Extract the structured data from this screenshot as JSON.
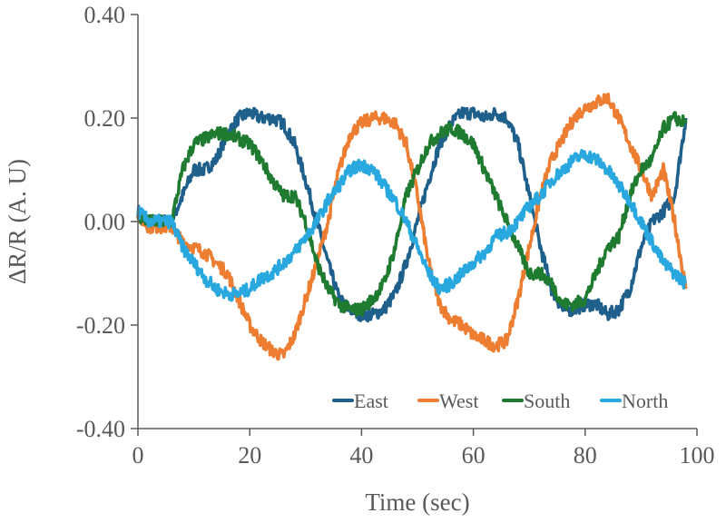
{
  "chart_data": {
    "type": "line",
    "title": "",
    "xlabel": "Time (sec)",
    "ylabel": "ΔR/R (A. U)",
    "xlim": [
      0,
      100
    ],
    "ylim": [
      -0.4,
      0.4
    ],
    "xticks": [
      "0",
      "20",
      "40",
      "60",
      "80",
      "100"
    ],
    "yticks": [
      "0.40",
      "0.20",
      "0.00",
      "-0.20",
      "-0.40"
    ],
    "xtick_values": [
      0,
      20,
      40,
      60,
      80,
      100
    ],
    "ytick_values": [
      0.4,
      0.2,
      0,
      -0.2,
      -0.4
    ],
    "grid": false,
    "legend_position": "bottom-right",
    "x": [
      0,
      2,
      4,
      6,
      8,
      10,
      12,
      14,
      16,
      18,
      20,
      22,
      24,
      26,
      28,
      30,
      32,
      34,
      36,
      38,
      40,
      42,
      44,
      46,
      48,
      50,
      52,
      54,
      56,
      58,
      60,
      62,
      64,
      66,
      68,
      70,
      72,
      74,
      76,
      78,
      80,
      82,
      84,
      86,
      88,
      90,
      92,
      94,
      96,
      98
    ],
    "series": [
      {
        "name": "East",
        "color": "#1f5f8b",
        "values": [
          0.02,
          0,
          0,
          0,
          0.05,
          0.1,
          0.1,
          0.12,
          0.17,
          0.2,
          0.21,
          0.2,
          0.2,
          0.19,
          0.15,
          0.08,
          0,
          -0.08,
          -0.15,
          -0.17,
          -0.18,
          -0.18,
          -0.17,
          -0.14,
          -0.08,
          0,
          0.08,
          0.15,
          0.19,
          0.21,
          0.21,
          0.2,
          0.21,
          0.2,
          0.15,
          0.05,
          -0.05,
          -0.13,
          -0.17,
          -0.17,
          -0.16,
          -0.16,
          -0.18,
          -0.17,
          -0.13,
          -0.05,
          0,
          0.02,
          0.05,
          0.2
        ]
      },
      {
        "name": "West",
        "color": "#ed7d31",
        "values": [
          0.01,
          -0.01,
          -0.01,
          -0.01,
          -0.04,
          -0.05,
          -0.06,
          -0.08,
          -0.1,
          -0.15,
          -0.2,
          -0.23,
          -0.25,
          -0.26,
          -0.22,
          -0.15,
          -0.08,
          0,
          0.1,
          0.17,
          0.19,
          0.2,
          0.2,
          0.19,
          0.15,
          0.05,
          -0.08,
          -0.16,
          -0.19,
          -0.2,
          -0.22,
          -0.23,
          -0.24,
          -0.23,
          -0.15,
          -0.05,
          0.05,
          0.12,
          0.16,
          0.2,
          0.22,
          0.23,
          0.24,
          0.2,
          0.15,
          0.1,
          0.05,
          0.1,
          0,
          -0.13
        ]
      },
      {
        "name": "South",
        "color": "#1e7b30",
        "values": [
          0.01,
          0,
          0,
          0,
          0.1,
          0.15,
          0.16,
          0.17,
          0.17,
          0.16,
          0.15,
          0.12,
          0.08,
          0.05,
          0.05,
          0,
          -0.08,
          -0.13,
          -0.16,
          -0.17,
          -0.17,
          -0.15,
          -0.12,
          -0.05,
          0.05,
          0.1,
          0.15,
          0.17,
          0.18,
          0.17,
          0.15,
          0.1,
          0.05,
          0,
          -0.05,
          -0.1,
          -0.1,
          -0.12,
          -0.16,
          -0.16,
          -0.15,
          -0.1,
          -0.05,
          -0.03,
          0.05,
          0.1,
          0.12,
          0.18,
          0.2,
          0.19
        ]
      },
      {
        "name": "North",
        "color": "#29a8e0",
        "values": [
          0.02,
          0,
          0,
          0,
          -0.05,
          -0.08,
          -0.11,
          -0.13,
          -0.14,
          -0.14,
          -0.13,
          -0.11,
          -0.1,
          -0.08,
          -0.06,
          -0.03,
          0,
          0.04,
          0.07,
          0.1,
          0.11,
          0.1,
          0.07,
          0.04,
          0,
          -0.05,
          -0.1,
          -0.13,
          -0.12,
          -0.1,
          -0.08,
          -0.06,
          -0.03,
          -0.02,
          0,
          0.03,
          0.05,
          0.08,
          0.1,
          0.12,
          0.13,
          0.12,
          0.1,
          0.07,
          0.04,
          0,
          -0.04,
          -0.08,
          -0.1,
          -0.12
        ]
      }
    ]
  }
}
